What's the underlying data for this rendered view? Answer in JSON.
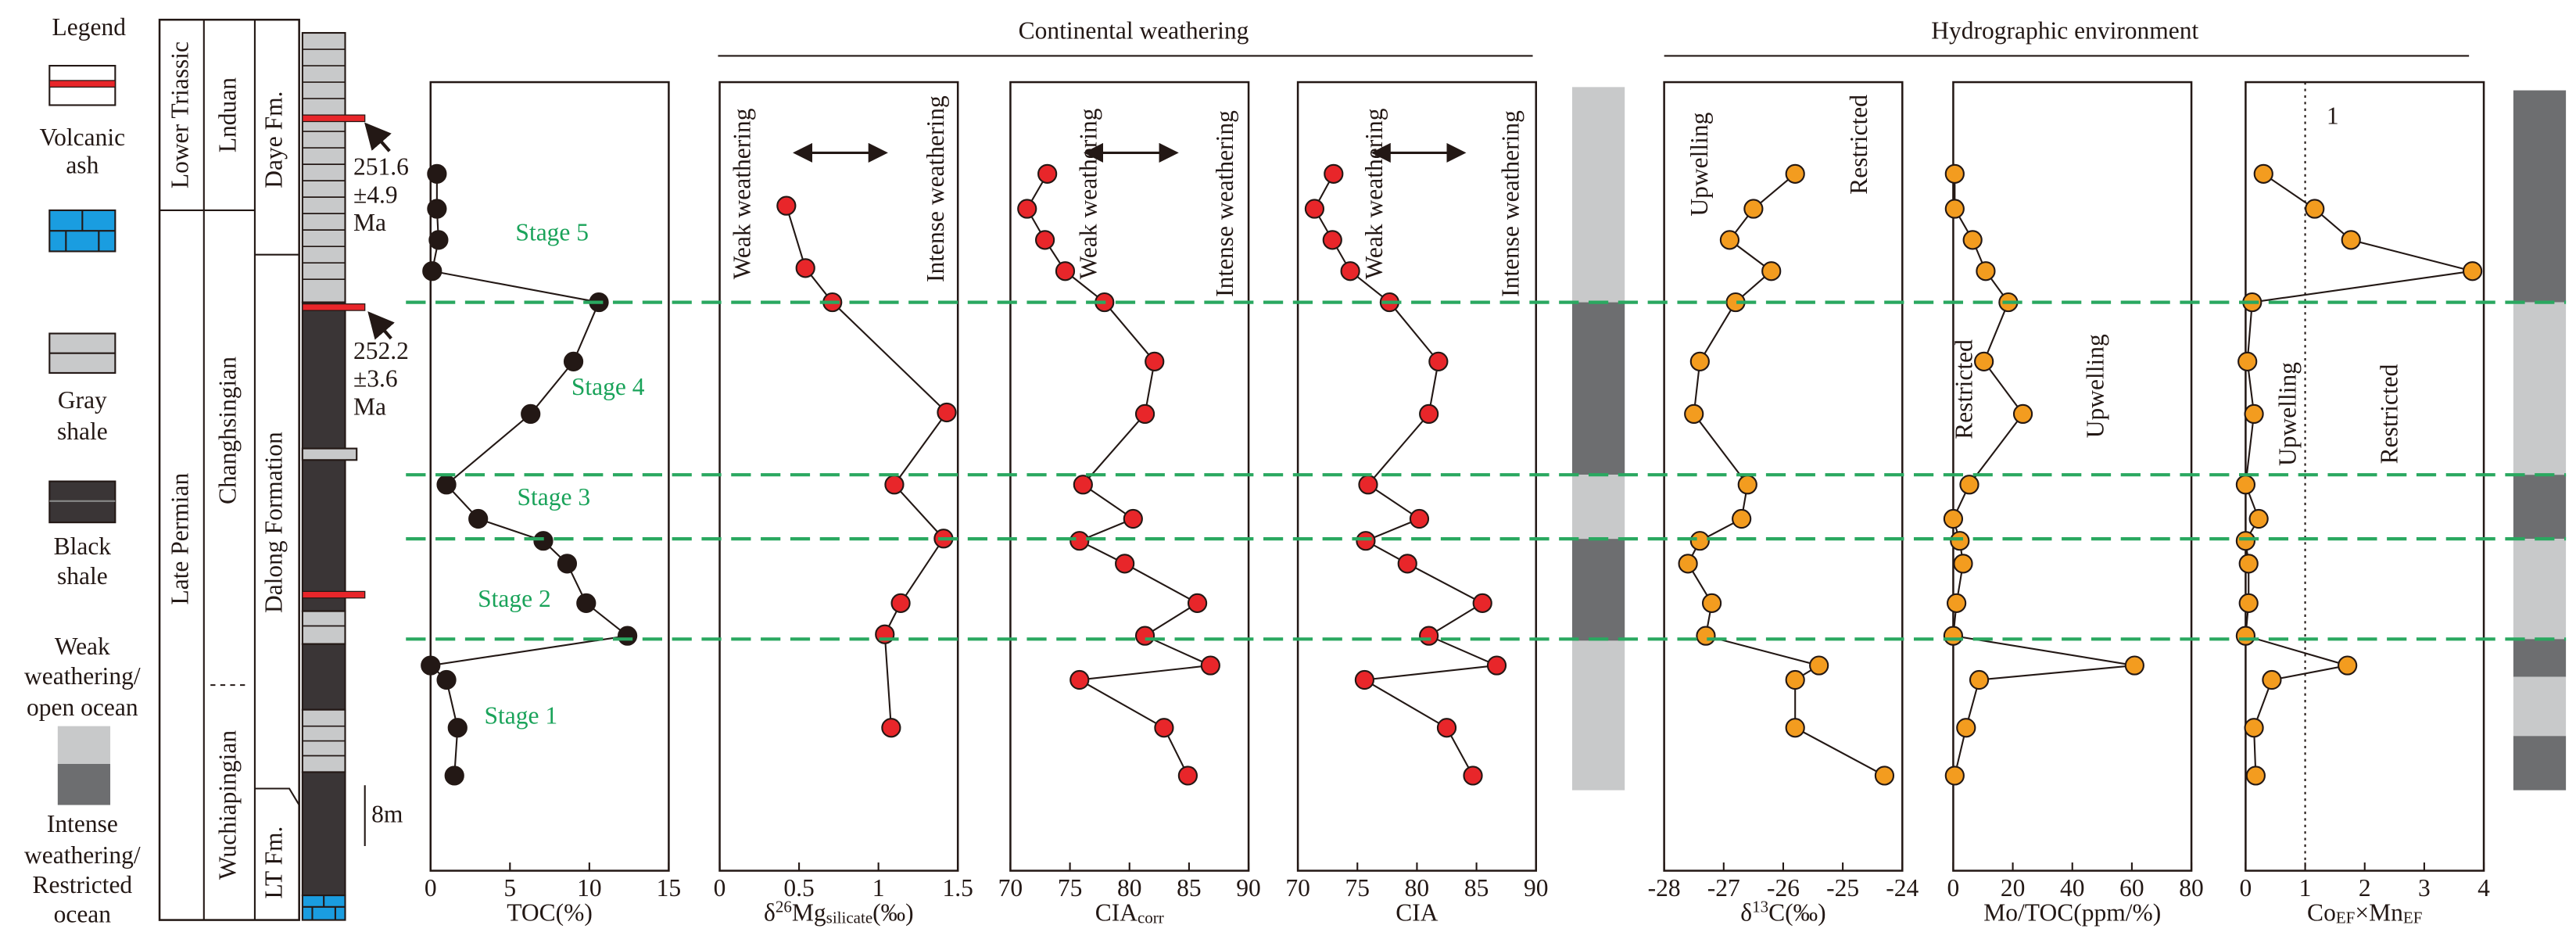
{
  "headers": [
    "Continental weathering",
    "Hydrographic environment"
  ],
  "legend": {
    "title": "Legend",
    "items": [
      [
        "Volcanic",
        "ash"
      ],
      [
        "Gray",
        "shale"
      ],
      [
        "Black",
        "shale"
      ],
      [
        "Weak",
        "weathering/",
        "open ocean"
      ],
      [
        "Intense",
        "weathering/",
        "Restricted",
        "ocean"
      ]
    ]
  },
  "stratigraphy": {
    "systems": [
      "Lower Triassic",
      "Late Permian"
    ],
    "stages": [
      "Lnduan",
      "Changhsingian",
      "Wuchiapingian"
    ],
    "formations": [
      "Daye Fm.",
      "Dalong Formation",
      "LT Fm."
    ]
  },
  "ages": [
    [
      "251.6",
      "±4.9",
      "Ma"
    ],
    [
      "252.2",
      "±3.6",
      "Ma"
    ]
  ],
  "scale_bar": "8m",
  "stages": [
    "Stage 5",
    "Stage 4",
    "Stage 3",
    "Stage 2",
    "Stage 1"
  ],
  "chart_data": [
    {
      "type": "line",
      "x_label": [
        {
          "t": "TOC(%)"
        }
      ],
      "color": "#231815",
      "xlim": [
        0,
        15
      ],
      "xticks": [
        0,
        5,
        10,
        15
      ],
      "ylim": [
        0,
        110
      ],
      "values": [
        0.4,
        0.4,
        0.5,
        0.1,
        10.6,
        9.0,
        6.3,
        1.0,
        3.0,
        7.1,
        8.6,
        9.8,
        12.4,
        0,
        1.0,
        1.7,
        1.5
      ],
      "heights": [
        98.2,
        93.6,
        89.5,
        85.4,
        81.3,
        73.5,
        66.6,
        57.3,
        52.8,
        49.9,
        46.9,
        41.7,
        37.4,
        33.5,
        31.6,
        25.3,
        19.0
      ]
    },
    {
      "type": "line",
      "x_label": [
        {
          "t": "δ"
        },
        {
          "t": "26",
          "s": "sup"
        },
        {
          "t": "Mg"
        },
        {
          "t": "silicate",
          "s": "sub"
        },
        {
          "t": "(‰)"
        }
      ],
      "color": "#e8262a",
      "xlim": [
        0,
        1.5
      ],
      "xticks": [
        0,
        0.5,
        1,
        1.5
      ],
      "ylim": [
        0,
        110
      ],
      "annotations": [
        "Weak weathering",
        "Intense weathering"
      ],
      "values": [
        0.42,
        0.54,
        0.71,
        1.43,
        1.1,
        1.41,
        1.14,
        1.04,
        1.08
      ],
      "heights": [
        94.0,
        85.8,
        81.3,
        66.8,
        57.3,
        50.2,
        41.7,
        37.6,
        25.3
      ]
    },
    {
      "type": "line",
      "x_label": [
        {
          "t": "CIA"
        },
        {
          "t": "corr",
          "s": "sub"
        }
      ],
      "color": "#e8262a",
      "xlim": [
        70,
        90
      ],
      "xticks": [
        70,
        75,
        80,
        85,
        90
      ],
      "ylim": [
        0,
        110
      ],
      "annotations": [
        "Weak weathering",
        "Intense weathering"
      ],
      "values": [
        73.1,
        71.4,
        72.9,
        74.6,
        77.9,
        82.1,
        81.3,
        76.1,
        80.3,
        75.8,
        79.6,
        85.7,
        81.3,
        86.8,
        75.8,
        82.9,
        84.9
      ],
      "heights": [
        98.2,
        93.6,
        89.5,
        85.4,
        81.3,
        73.5,
        66.6,
        57.3,
        52.8,
        49.9,
        46.9,
        41.7,
        37.4,
        33.5,
        31.6,
        25.3,
        19.0
      ]
    },
    {
      "type": "line",
      "x_label": [
        {
          "t": "CIA"
        }
      ],
      "color": "#e8262a",
      "xlim": [
        70,
        90
      ],
      "xticks": [
        70,
        75,
        80,
        85,
        90
      ],
      "ylim": [
        0,
        110
      ],
      "annotations": [
        "Weak weathering",
        "Intense weathering"
      ],
      "values": [
        73.0,
        71.4,
        72.9,
        74.4,
        77.7,
        81.8,
        81.0,
        75.9,
        80.2,
        75.7,
        79.2,
        85.5,
        81.0,
        86.7,
        75.6,
        82.5,
        84.7
      ],
      "heights": [
        98.2,
        93.6,
        89.5,
        85.4,
        81.3,
        73.5,
        66.6,
        57.3,
        52.8,
        49.9,
        46.9,
        41.7,
        37.4,
        33.5,
        31.6,
        25.3,
        19.0
      ]
    },
    {
      "type": "line",
      "x_label": [
        {
          "t": "δ"
        },
        {
          "t": "13",
          "s": "sup"
        },
        {
          "t": "C(‰)"
        }
      ],
      "color": "#f39c1f",
      "xlim": [
        -28,
        -24
      ],
      "xticks": [
        -28,
        -27,
        -26,
        -25,
        -24
      ],
      "ylim": [
        0,
        110
      ],
      "annotations": [
        "Upwelling",
        "Restricted"
      ],
      "values": [
        -25.8,
        -26.5,
        -26.9,
        -26.2,
        -26.8,
        -27.4,
        -27.5,
        -26.6,
        -26.7,
        -27.4,
        -27.6,
        -27.2,
        -27.3,
        -25.4,
        -25.8,
        -25.8,
        -24.3
      ],
      "heights": [
        98.2,
        93.6,
        89.5,
        85.4,
        81.3,
        73.5,
        66.6,
        57.3,
        52.8,
        49.9,
        46.9,
        41.7,
        37.4,
        33.5,
        31.6,
        25.3,
        19.0
      ]
    },
    {
      "type": "line",
      "x_label": [
        {
          "t": "Mo/TOC(ppm/%)"
        }
      ],
      "color": "#f39c1f",
      "xlim": [
        0,
        80
      ],
      "xticks": [
        0,
        20,
        40,
        60,
        80
      ],
      "ylim": [
        0,
        110
      ],
      "annotations": [
        "Restricted",
        "Upwelling"
      ],
      "values": [
        0.5,
        0.5,
        6.5,
        10.9,
        18.5,
        10.3,
        23.4,
        5.4,
        0,
        2.2,
        3.3,
        1.1,
        0,
        60.9,
        8.7,
        4.3,
        0.5
      ],
      "heights": [
        98.2,
        93.6,
        89.5,
        85.4,
        81.3,
        73.5,
        66.6,
        57.3,
        52.8,
        49.9,
        46.9,
        41.7,
        37.4,
        33.5,
        31.6,
        25.3,
        19.0
      ]
    },
    {
      "type": "line",
      "x_label": [
        {
          "t": "Co"
        },
        {
          "t": "EF",
          "s": "sub"
        },
        {
          "t": "×Mn"
        },
        {
          "t": "EF",
          "s": "sub"
        }
      ],
      "color": "#f39c1f",
      "xlim": [
        0,
        4
      ],
      "xticks": [
        0,
        1,
        2,
        3,
        4
      ],
      "ylim": [
        0,
        110
      ],
      "annotations": [
        "Upwelling",
        "Restricted"
      ],
      "ref_line": 1,
      "values": [
        0.3,
        1.16,
        1.77,
        3.81,
        0.11,
        0.03,
        0.14,
        0,
        0.22,
        0,
        0.05,
        0.05,
        0,
        1.71,
        0.44,
        0.14,
        0.17
      ],
      "heights": [
        98.2,
        93.6,
        89.5,
        85.4,
        81.3,
        73.5,
        66.6,
        57.3,
        52.8,
        49.9,
        46.9,
        41.7,
        37.4,
        33.5,
        31.6,
        25.3,
        19.0
      ]
    }
  ]
}
